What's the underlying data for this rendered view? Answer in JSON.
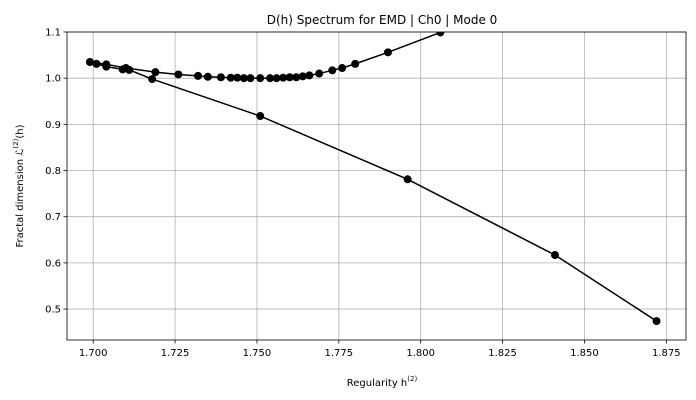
{
  "chart_data": {
    "type": "line",
    "title": "D(h) Spectrum for EMD | Ch0 | Mode 0",
    "xlabel": "Regularity h",
    "xlabel_sup": "(2)",
    "ylabel": "Fractal dimension ℒ",
    "ylabel_sup": "(2)",
    "ylabel_tail": "(h)",
    "xlim": [
      1.692,
      1.881
    ],
    "ylim": [
      0.433,
      1.1
    ],
    "xticks": [
      1.7,
      1.725,
      1.75,
      1.775,
      1.8,
      1.825,
      1.85,
      1.875
    ],
    "xtick_labels": [
      "1.700",
      "1.725",
      "1.750",
      "1.775",
      "1.800",
      "1.825",
      "1.850",
      "1.875"
    ],
    "yticks": [
      0.5,
      0.6,
      0.7,
      0.8,
      0.9,
      1.0,
      1.1
    ],
    "ytick_labels": [
      "0.5",
      "0.6",
      "0.7",
      "0.8",
      "0.9",
      "1.0",
      "1.1"
    ],
    "grid": true,
    "series": [
      {
        "color": "#000000",
        "marker": "circle",
        "x": [
          1.872,
          1.841,
          1.796,
          1.751,
          1.718,
          1.711,
          1.709,
          1.704,
          1.701,
          1.699,
          1.704,
          1.71,
          1.719,
          1.726,
          1.732,
          1.735,
          1.739,
          1.742,
          1.744,
          1.746,
          1.748,
          1.751,
          1.754,
          1.756,
          1.758,
          1.76,
          1.762,
          1.764,
          1.766,
          1.769,
          1.773,
          1.776,
          1.78,
          1.79,
          1.806
        ],
        "y": [
          0.474,
          0.617,
          0.781,
          0.918,
          0.998,
          1.018,
          1.019,
          1.025,
          1.031,
          1.035,
          1.03,
          1.022,
          1.013,
          1.008,
          1.005,
          1.003,
          1.002,
          1.001,
          1.001,
          1.0,
          1.0,
          1.0,
          1.0,
          1.0,
          1.001,
          1.002,
          1.002,
          1.004,
          1.006,
          1.01,
          1.017,
          1.022,
          1.031,
          1.056,
          1.099
        ]
      }
    ]
  }
}
